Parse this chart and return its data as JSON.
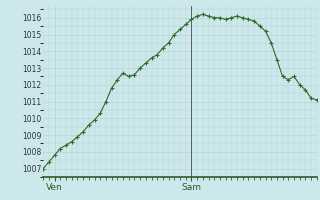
{
  "background_color": "#cde8ea",
  "plot_bg_color": "#cde8ea",
  "line_color": "#2d6a2d",
  "marker_color": "#2d6a2d",
  "grid_color": "#b8d4d6",
  "vline_color": "#4a4a4a",
  "spine_color": "#2d5a2d",
  "xlim": [
    0,
    48
  ],
  "ylim": [
    1006.5,
    1016.7
  ],
  "yticks": [
    1007,
    1008,
    1009,
    1010,
    1011,
    1012,
    1013,
    1014,
    1015,
    1016
  ],
  "xtick_positions": [
    2,
    26
  ],
  "xtick_labels": [
    "Ven",
    "Sam"
  ],
  "vline_x": 26,
  "x": [
    0,
    1,
    2,
    3,
    4,
    5,
    6,
    7,
    8,
    9,
    10,
    11,
    12,
    13,
    14,
    15,
    16,
    17,
    18,
    19,
    20,
    21,
    22,
    23,
    24,
    25,
    26,
    27,
    28,
    29,
    30,
    31,
    32,
    33,
    34,
    35,
    36,
    37,
    38,
    39,
    40,
    41,
    42,
    43,
    44,
    45,
    46,
    47,
    48
  ],
  "y": [
    1007.0,
    1007.4,
    1007.8,
    1008.2,
    1008.4,
    1008.6,
    1008.9,
    1009.2,
    1009.6,
    1009.9,
    1010.3,
    1011.0,
    1011.8,
    1012.3,
    1012.7,
    1012.5,
    1012.6,
    1013.0,
    1013.3,
    1013.6,
    1013.8,
    1014.2,
    1014.5,
    1015.0,
    1015.3,
    1015.6,
    1015.9,
    1016.1,
    1016.2,
    1016.1,
    1016.0,
    1016.0,
    1015.9,
    1016.0,
    1016.1,
    1016.0,
    1015.9,
    1015.8,
    1015.5,
    1015.2,
    1014.5,
    1013.5,
    1012.5,
    1012.3,
    1012.5,
    1012.0,
    1011.7,
    1011.2,
    1011.1
  ]
}
